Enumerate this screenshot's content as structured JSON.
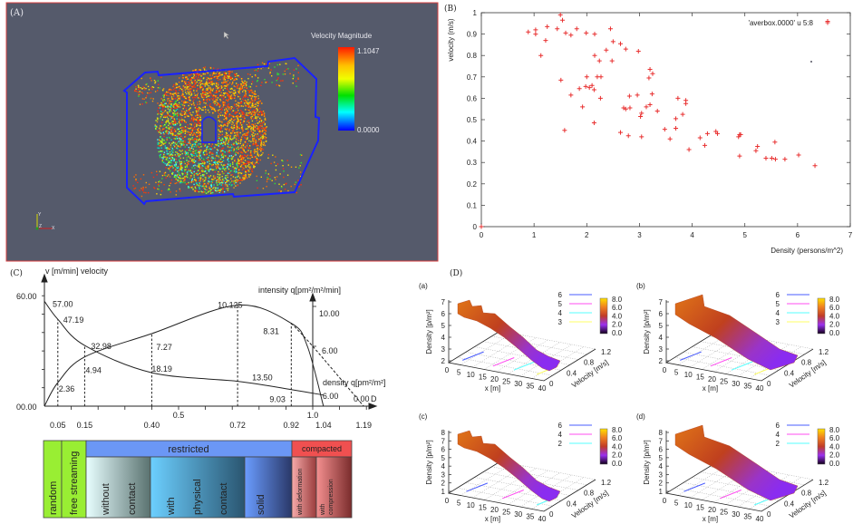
{
  "panel_labels": {
    "A": "(A)",
    "B": "(B)",
    "C": "(C)",
    "D": "(D)"
  },
  "panel_a": {
    "colorbar_title": "Velocity Magnitude",
    "colorbar_max": "1.1047",
    "colorbar_min": "0.0000",
    "colorbar_colors": [
      "#ff1a00",
      "#ffd000",
      "#ffff00",
      "#00e000",
      "#00ffff",
      "#0000ff"
    ],
    "axes_triad": {
      "x": "X",
      "y": "Y",
      "z": "Z"
    },
    "background": "#555a6b",
    "boundary_color": "#1a22ff"
  },
  "chart_data": [
    {
      "type": "scatter",
      "xlabel": "Density (persons/m^2)",
      "ylabel": "velocity (m/s)",
      "xlim": [
        0,
        7
      ],
      "ylim": [
        0,
        1
      ],
      "x_ticks": [
        "0",
        "1",
        "2",
        "3",
        "4",
        "5",
        "6",
        "7"
      ],
      "y_ticks": [
        "0",
        "0.1",
        "0.2",
        "0.3",
        "0.4",
        "0.5",
        "0.6",
        "0.7",
        "0.8",
        "0.9",
        "1"
      ],
      "legend": "'averbox.0000' u 5:8",
      "legend_position": "top-right",
      "marker": "+",
      "color": "#e83030",
      "points": [
        [
          0,
          0
        ],
        [
          0.89,
          0.91
        ],
        [
          1.03,
          0.92
        ],
        [
          1.03,
          0.9
        ],
        [
          1.25,
          0.935
        ],
        [
          1.22,
          0.87
        ],
        [
          1.13,
          0.8
        ],
        [
          1.44,
          0.925
        ],
        [
          1.5,
          0.99
        ],
        [
          1.54,
          0.965
        ],
        [
          1.6,
          0.905
        ],
        [
          1.7,
          0.895
        ],
        [
          1.81,
          0.925
        ],
        [
          1.99,
          0.905
        ],
        [
          2.15,
          0.9
        ],
        [
          2.45,
          0.925
        ],
        [
          2.5,
          0.865
        ],
        [
          2.64,
          0.855
        ],
        [
          2.74,
          0.83
        ],
        [
          2.98,
          0.82
        ],
        [
          2.37,
          0.825
        ],
        [
          2.15,
          0.8
        ],
        [
          2.24,
          0.775
        ],
        [
          2.48,
          0.775
        ],
        [
          1.51,
          0.685
        ],
        [
          2.0,
          0.7
        ],
        [
          2.2,
          0.7
        ],
        [
          2.27,
          0.7
        ],
        [
          1.98,
          0.655
        ],
        [
          2.05,
          0.65
        ],
        [
          2.1,
          0.66
        ],
        [
          2.14,
          0.64
        ],
        [
          1.7,
          0.615
        ],
        [
          1.86,
          0.645
        ],
        [
          2.26,
          0.6
        ],
        [
          1.92,
          0.56
        ],
        [
          2.14,
          0.485
        ],
        [
          1.58,
          0.45
        ],
        [
          3.2,
          0.735
        ],
        [
          3.25,
          0.715
        ],
        [
          3.18,
          0.695
        ],
        [
          3.24,
          0.62
        ],
        [
          2.81,
          0.61
        ],
        [
          2.96,
          0.615
        ],
        [
          2.7,
          0.555
        ],
        [
          2.74,
          0.55
        ],
        [
          2.82,
          0.555
        ],
        [
          3.13,
          0.56
        ],
        [
          3.2,
          0.57
        ],
        [
          3.04,
          0.53
        ],
        [
          3.02,
          0.515
        ],
        [
          3.34,
          0.54
        ],
        [
          3.73,
          0.6
        ],
        [
          3.88,
          0.59
        ],
        [
          3.88,
          0.575
        ],
        [
          3.82,
          0.525
        ],
        [
          3.69,
          0.505
        ],
        [
          3.69,
          0.46
        ],
        [
          3.48,
          0.455
        ],
        [
          3.58,
          0.41
        ],
        [
          2.64,
          0.44
        ],
        [
          2.79,
          0.425
        ],
        [
          3.04,
          0.42
        ],
        [
          3.94,
          0.36
        ],
        [
          4.15,
          0.415
        ],
        [
          4.29,
          0.435
        ],
        [
          4.24,
          0.38
        ],
        [
          4.45,
          0.445
        ],
        [
          4.48,
          0.435
        ],
        [
          4.88,
          0.42
        ],
        [
          4.9,
          0.43
        ],
        [
          4.92,
          0.43
        ],
        [
          4.9,
          0.33
        ],
        [
          5.21,
          0.355
        ],
        [
          5.24,
          0.375
        ],
        [
          5.4,
          0.32
        ],
        [
          5.51,
          0.32
        ],
        [
          5.57,
          0.395
        ],
        [
          5.58,
          0.315
        ],
        [
          5.76,
          0.315
        ],
        [
          6.02,
          0.335
        ],
        [
          6.33,
          0.285
        ],
        [
          6.57,
          0.96
        ]
      ]
    },
    {
      "type": "line",
      "y_label": "v [m/min] velocity",
      "y2_label": "intensity q[pm²/m²/min]",
      "density_label": "density q[pm²/m²]",
      "x_axis_label": "D",
      "y_ticks": [
        "60.00",
        "00.00"
      ],
      "y2_ticks": [
        "10.00",
        "6.00"
      ],
      "x_ticks_upper": [
        "0.5",
        "1.0"
      ],
      "x_ticks_lower": [
        "0.05",
        "0.15",
        "0.40",
        "0.72",
        "0.92",
        "1.04",
        "1.19"
      ],
      "end_label": "0.00",
      "velocity": [
        [
          0,
          57.0
        ],
        [
          0.05,
          47.19
        ],
        [
          0.15,
          32.98
        ],
        [
          0.4,
          18.19
        ],
        [
          0.72,
          13.5
        ],
        [
          0.92,
          9.03
        ],
        [
          1.04,
          6.0
        ]
      ],
      "velocity_labels": [
        "57.00",
        "47.19",
        "32.98",
        "18.19",
        "13.50",
        "9.03",
        "6.00"
      ],
      "intensity": [
        [
          0,
          0
        ],
        [
          0.05,
          2.36
        ],
        [
          0.15,
          4.94
        ],
        [
          0.4,
          7.27
        ],
        [
          0.72,
          10.125
        ],
        [
          0.92,
          8.31
        ],
        [
          0.98,
          6.0
        ],
        [
          1.04,
          0
        ]
      ],
      "intensity_labels": [
        "2.36",
        "4.94",
        "7.27",
        "10.125",
        "8.31"
      ],
      "intensity_dashed": [
        [
          0.92,
          8.31
        ],
        [
          1.0,
          6.0
        ],
        [
          1.19,
          0
        ]
      ],
      "dashed_markers": [
        0.05,
        0.15,
        0.4,
        0.72,
        0.92
      ],
      "classification": {
        "random": "random",
        "free_streaming": "free streaming",
        "restricted": "restricted",
        "without": "without",
        "contact1": "contact",
        "with": "with",
        "physical": "physical",
        "contact2": "contact",
        "solid": "solid",
        "compacted": "compacted",
        "with_deformation": "with deformation",
        "with2": "with",
        "compression": "compression"
      }
    },
    {
      "type": "surface",
      "subplots": [
        {
          "label": "(a)",
          "zlabel": "Density [p/m²]",
          "xlabel": "x [m]",
          "ylabel": "Velocity [m/s]",
          "z_ticks": [
            "7",
            "6",
            "5",
            "4",
            "3",
            "2"
          ],
          "x_ticks": [
            "0",
            "5",
            "10",
            "15",
            "20",
            "25",
            "30",
            "35",
            "40"
          ],
          "v_ticks": [
            "0",
            "0.4",
            "0.8",
            "1.2"
          ],
          "colorbar_ticks": [
            "8.0",
            "6.0",
            "4.0",
            "2.0",
            "0.0"
          ],
          "contour_levels": [
            {
              "label": "6",
              "color": "#4a5cff"
            },
            {
              "label": "5",
              "color": "#ff4cf0"
            },
            {
              "label": "4",
              "color": "#55ffff"
            },
            {
              "label": "3",
              "color": "#ffff66"
            }
          ]
        },
        {
          "label": "(b)",
          "zlabel": "Density [p/m²]",
          "xlabel": "x [m]",
          "ylabel": "Velocity [m/s]",
          "z_ticks": [
            "7",
            "6",
            "5",
            "4",
            "3",
            "2"
          ],
          "x_ticks": [
            "0",
            "5",
            "10",
            "15",
            "20",
            "25",
            "30",
            "35",
            "40"
          ],
          "v_ticks": [
            "0",
            "0.4",
            "0.8",
            "1.2"
          ],
          "colorbar_ticks": [
            "8.0",
            "6.0",
            "4.0",
            "2.0",
            "0.0"
          ],
          "contour_levels": [
            {
              "label": "6",
              "color": "#4a5cff"
            },
            {
              "label": "5",
              "color": "#ff4cf0"
            },
            {
              "label": "4",
              "color": "#55ffff"
            },
            {
              "label": "3",
              "color": "#ffff66"
            }
          ]
        },
        {
          "label": "(c)",
          "zlabel": "Density [p/m²]",
          "xlabel": "x [m]",
          "ylabel": "Velocity [m/s]",
          "z_ticks": [
            "8",
            "7",
            "6",
            "5",
            "4",
            "3",
            "2",
            "1"
          ],
          "x_ticks": [
            "0",
            "5",
            "10",
            "15",
            "20",
            "25",
            "30",
            "35",
            "40"
          ],
          "v_ticks": [
            "0",
            "0.4",
            "0.8",
            "1.2"
          ],
          "colorbar_ticks": [
            "8.0",
            "6.0",
            "4.0",
            "2.0",
            "0.0"
          ],
          "contour_levels": [
            {
              "label": "6",
              "color": "#4a5cff"
            },
            {
              "label": "4",
              "color": "#ff4cf0"
            },
            {
              "label": "2",
              "color": "#55ffff"
            }
          ]
        },
        {
          "label": "(d)",
          "zlabel": "Density [p/m²]",
          "xlabel": "x [m]",
          "ylabel": "Velocity [m/s]",
          "z_ticks": [
            "8",
            "7",
            "6",
            "5",
            "4",
            "3",
            "2",
            "1"
          ],
          "x_ticks": [
            "0",
            "5",
            "10",
            "15",
            "20",
            "25",
            "30",
            "35",
            "40"
          ],
          "v_ticks": [
            "0",
            "0.4",
            "0.8",
            "1.2"
          ],
          "colorbar_ticks": [
            "8.0",
            "6.0",
            "4.0",
            "2.0",
            "0.0"
          ],
          "contour_levels": [
            {
              "label": "6",
              "color": "#4a5cff"
            },
            {
              "label": "4",
              "color": "#ff4cf0"
            },
            {
              "label": "2",
              "color": "#55ffff"
            }
          ]
        }
      ]
    }
  ]
}
